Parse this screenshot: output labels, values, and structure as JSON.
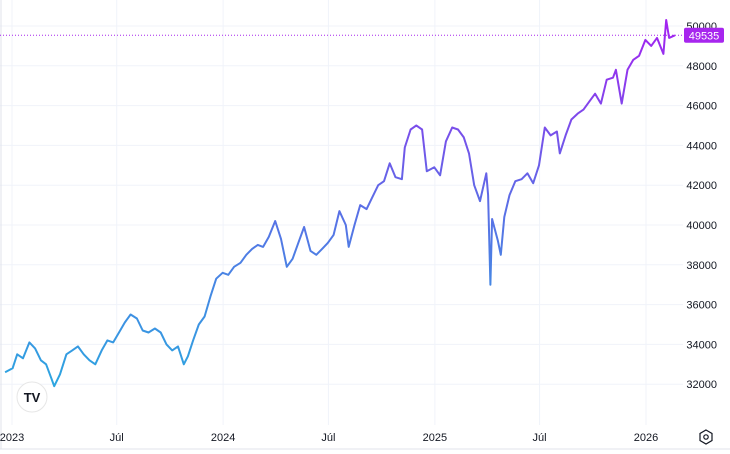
{
  "chart_data": {
    "type": "line",
    "title": "",
    "xlabel": "",
    "ylabel": "",
    "ylim": [
      30600,
      50600
    ],
    "grid": true,
    "y_ticks": [
      32000,
      34000,
      36000,
      38000,
      40000,
      42000,
      44000,
      46000,
      48000,
      50000
    ],
    "x_ticks": [
      {
        "date": "2023-01-01",
        "label": "2023"
      },
      {
        "date": "2023-07-01",
        "label": "Júl"
      },
      {
        "date": "2024-01-01",
        "label": "2024"
      },
      {
        "date": "2024-07-01",
        "label": "Júl"
      },
      {
        "date": "2025-01-01",
        "label": "2025"
      },
      {
        "date": "2025-07-01",
        "label": "Júl"
      },
      {
        "date": "2026-01-01",
        "label": "2026"
      }
    ],
    "last_value": 49535,
    "last_value_label": "49535",
    "colors": {
      "low": "#2ca5e0",
      "mid": "#5b6ee6",
      "high": "#a224f0",
      "label_bg": "#a726ee",
      "grid": "#f0f3fa"
    },
    "series": [
      {
        "x": [
          "2022-12-20",
          "2023-01-02",
          "2023-01-10",
          "2023-01-20",
          "2023-01-31",
          "2023-02-10",
          "2023-02-20",
          "2023-03-01",
          "2023-03-10",
          "2023-03-15",
          "2023-03-25",
          "2023-04-05",
          "2023-04-15",
          "2023-04-25",
          "2023-05-05",
          "2023-05-15",
          "2023-05-25",
          "2023-06-05",
          "2023-06-15",
          "2023-06-25",
          "2023-07-05",
          "2023-07-15",
          "2023-07-25",
          "2023-08-05",
          "2023-08-15",
          "2023-08-25",
          "2023-09-05",
          "2023-09-15",
          "2023-09-25",
          "2023-10-05",
          "2023-10-15",
          "2023-10-25",
          "2023-11-01",
          "2023-11-10",
          "2023-11-20",
          "2023-11-30",
          "2023-12-10",
          "2023-12-20",
          "2023-12-31",
          "2024-01-10",
          "2024-01-20",
          "2024-01-31",
          "2024-02-10",
          "2024-02-20",
          "2024-03-01",
          "2024-03-10",
          "2024-03-20",
          "2024-03-31",
          "2024-04-10",
          "2024-04-20",
          "2024-04-30",
          "2024-05-10",
          "2024-05-20",
          "2024-05-31",
          "2024-06-10",
          "2024-06-20",
          "2024-06-30",
          "2024-07-10",
          "2024-07-20",
          "2024-07-31",
          "2024-08-05",
          "2024-08-15",
          "2024-08-25",
          "2024-09-05",
          "2024-09-15",
          "2024-09-25",
          "2024-10-05",
          "2024-10-15",
          "2024-10-25",
          "2024-11-05",
          "2024-11-10",
          "2024-11-20",
          "2024-11-30",
          "2024-12-10",
          "2024-12-18",
          "2024-12-31",
          "2025-01-10",
          "2025-01-20",
          "2025-01-31",
          "2025-02-10",
          "2025-02-20",
          "2025-03-01",
          "2025-03-10",
          "2025-03-20",
          "2025-03-31",
          "2025-04-03",
          "2025-04-07",
          "2025-04-10",
          "2025-04-20",
          "2025-04-25",
          "2025-05-01",
          "2025-05-10",
          "2025-05-20",
          "2025-05-31",
          "2025-06-10",
          "2025-06-20",
          "2025-06-30",
          "2025-07-10",
          "2025-07-20",
          "2025-07-31",
          "2025-08-05",
          "2025-08-15",
          "2025-08-25",
          "2025-09-05",
          "2025-09-15",
          "2025-09-25",
          "2025-10-05",
          "2025-10-15",
          "2025-10-25",
          "2025-11-05",
          "2025-11-10",
          "2025-11-20",
          "2025-11-30",
          "2025-12-10",
          "2025-12-20",
          "2025-12-31",
          "2026-01-10",
          "2026-01-20",
          "2026-01-31",
          "2026-02-05",
          "2026-02-10",
          "2026-02-20"
        ],
        "values": [
          32600,
          32800,
          33500,
          33300,
          34100,
          33800,
          33200,
          33000,
          32300,
          31900,
          32500,
          33500,
          33700,
          33900,
          33500,
          33200,
          33000,
          33700,
          34200,
          34100,
          34600,
          35100,
          35500,
          35300,
          34700,
          34600,
          34800,
          34600,
          34000,
          33700,
          33900,
          33000,
          33400,
          34200,
          35000,
          35400,
          36400,
          37300,
          37600,
          37500,
          37900,
          38100,
          38500,
          38800,
          39000,
          38900,
          39400,
          40200,
          39300,
          37900,
          38300,
          39100,
          39900,
          38700,
          38500,
          38800,
          39100,
          39500,
          40700,
          40000,
          38900,
          40000,
          41000,
          40800,
          41400,
          42000,
          42200,
          43100,
          42400,
          42300,
          43900,
          44800,
          45000,
          44800,
          42700,
          42900,
          42500,
          44200,
          44900,
          44800,
          44400,
          43600,
          42000,
          41200,
          42600,
          41500,
          37000,
          40300,
          39200,
          38500,
          40400,
          41500,
          42200,
          42300,
          42600,
          42100,
          43000,
          44900,
          44500,
          44700,
          43600,
          44500,
          45300,
          45600,
          45800,
          46200,
          46600,
          46100,
          47300,
          47400,
          47800,
          46100,
          47800,
          48300,
          48500,
          49300,
          49000,
          49400,
          48600,
          50300,
          49400,
          49535
        ]
      }
    ]
  },
  "icons": {
    "logo": "tradingview-logo",
    "settings": "settings-gear-icon"
  },
  "logo_text": "TV"
}
